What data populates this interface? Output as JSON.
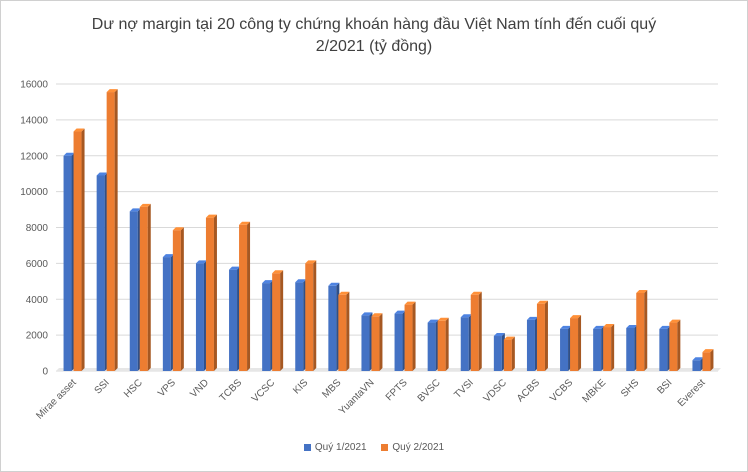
{
  "chart_data": {
    "type": "bar",
    "title_line1": "Dư nợ margin tại 20 công ty chứng khoán hàng đầu Việt Nam tính đến cuối quý",
    "title_line2": "2/2021 (tỷ đồng)",
    "categories": [
      "Mirae asset",
      "SSI",
      "HSC",
      "VPS",
      "VND",
      "TCBS",
      "VCSC",
      "KIS",
      "MBS",
      "YuantaVN",
      "FPTS",
      "BVSC",
      "TVSI",
      "VDSC",
      "ACBS",
      "VCBS",
      "MBKE",
      "SHS",
      "BSI",
      "Everest"
    ],
    "series": [
      {
        "name": "Quý 1/2021",
        "color": "#4472C4",
        "values": [
          12000,
          10900,
          8900,
          6350,
          6000,
          5650,
          4900,
          4950,
          4750,
          3100,
          3200,
          2700,
          3000,
          1950,
          2850,
          2350,
          2350,
          2400,
          2350,
          600
        ]
      },
      {
        "name": "Quý 2/2021",
        "color": "#ED7D31",
        "values": [
          13350,
          15550,
          9150,
          7850,
          8550,
          8150,
          5450,
          6000,
          4250,
          3050,
          3700,
          2800,
          4250,
          1750,
          3750,
          2950,
          2450,
          4350,
          2700,
          1050
        ]
      }
    ],
    "yticks": [
      "0",
      "2000",
      "4000",
      "6000",
      "8000",
      "10000",
      "12000",
      "14000",
      "16000"
    ],
    "ylim": [
      0,
      16000
    ],
    "grid": true,
    "legend_position": "bottom"
  }
}
